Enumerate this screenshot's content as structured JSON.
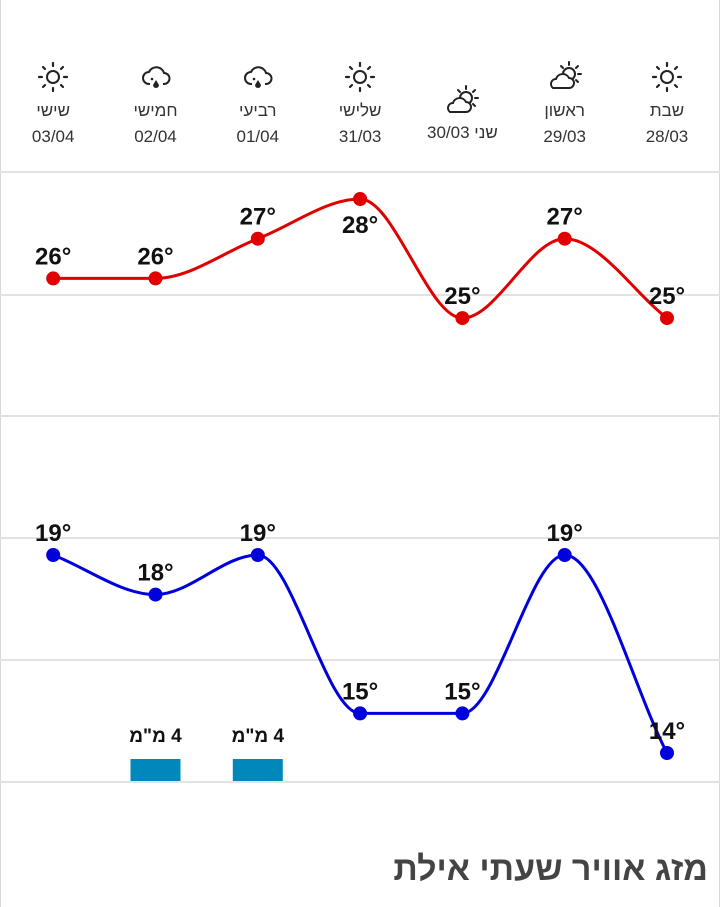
{
  "chart_data": {
    "type": "line",
    "categories": [
      {
        "day": "שבת",
        "date": "28/03",
        "icon": "sun-icon"
      },
      {
        "day": "ראשון",
        "date": "29/03",
        "icon": "partly-cloudy-icon"
      },
      {
        "day": "שני",
        "date": "30/03",
        "icon": "partly-cloudy-icon"
      },
      {
        "day": "שלישי",
        "date": "31/03",
        "icon": "sun-icon"
      },
      {
        "day": "רביעי",
        "date": "01/04",
        "icon": "rain-cloud-icon"
      },
      {
        "day": "חמישי",
        "date": "02/04",
        "icon": "rain-cloud-icon"
      },
      {
        "day": "שישי",
        "date": "03/04",
        "icon": "sun-icon"
      }
    ],
    "series": [
      {
        "values": [
          25,
          27,
          25,
          28,
          27,
          26,
          26
        ],
        "color": "#e00000"
      },
      {
        "values": [
          14,
          19,
          15,
          15,
          19,
          18,
          19
        ],
        "color": "#0000dd"
      }
    ],
    "precipitation": [
      null,
      null,
      null,
      null,
      "4 מ\"מ",
      "4 מ\"מ",
      null
    ],
    "precipitation_color": "#0088bb",
    "unit": "°",
    "x_direction": "right-to-left",
    "grid": true
  },
  "title": "מזג אוויר שעתי אילת"
}
